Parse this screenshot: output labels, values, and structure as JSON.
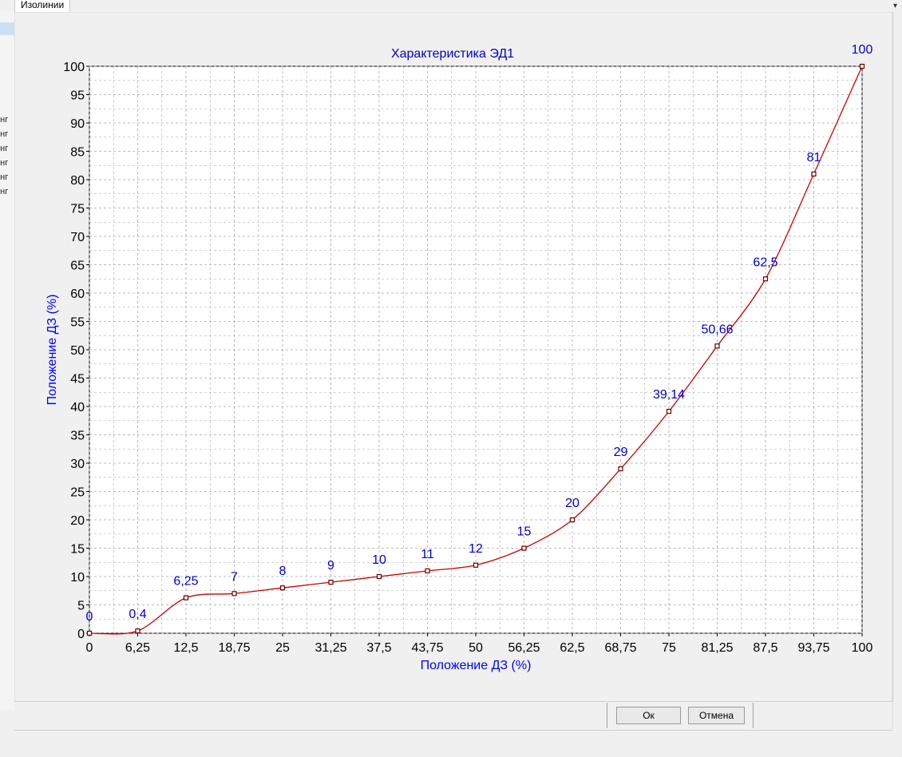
{
  "tab_label": "Изолинии",
  "left_list_items": [
    "инг",
    "инг",
    "инг",
    "инг",
    "инг",
    "инг"
  ],
  "buttons": {
    "ok": "Ок",
    "cancel": "Отмена"
  },
  "colors": {
    "title": "#0000cc",
    "line": "#cc0000",
    "axis_label": "#0000ff",
    "data_label": "#0000cc",
    "grid": "#a8a8a8"
  },
  "chart_data": {
    "type": "line",
    "title": "Характеристика ЭД1",
    "xlabel": "Положение ДЗ (%)",
    "ylabel": "Положение ДЗ (%)",
    "xlim": [
      0,
      100
    ],
    "ylim": [
      0,
      100
    ],
    "grid": true,
    "x_ticks": [
      "0",
      "6,25",
      "12,5",
      "18,75",
      "25",
      "31,25",
      "37,5",
      "43,75",
      "50",
      "56,25",
      "62,5",
      "68,75",
      "75",
      "81,25",
      "87,5",
      "93,75",
      "100"
    ],
    "y_ticks": [
      "0",
      "5",
      "10",
      "15",
      "20",
      "25",
      "30",
      "35",
      "40",
      "45",
      "50",
      "55",
      "60",
      "65",
      "70",
      "75",
      "80",
      "85",
      "90",
      "95",
      "100"
    ],
    "x": [
      0,
      6.25,
      12.5,
      18.75,
      25,
      31.25,
      37.5,
      43.75,
      50,
      56.25,
      62.5,
      68.75,
      75,
      81.25,
      87.5,
      93.75,
      100
    ],
    "y": [
      0,
      0.4,
      6.25,
      7,
      8,
      9,
      10,
      11,
      12,
      15,
      20,
      29,
      39.14,
      50.66,
      62.5,
      81,
      100
    ],
    "point_labels": [
      "0",
      "0,4",
      "6,25",
      "7",
      "8",
      "9",
      "10",
      "11",
      "12",
      "15",
      "20",
      "29",
      "39,14",
      "50,66",
      "62,5",
      "81",
      "100"
    ]
  }
}
